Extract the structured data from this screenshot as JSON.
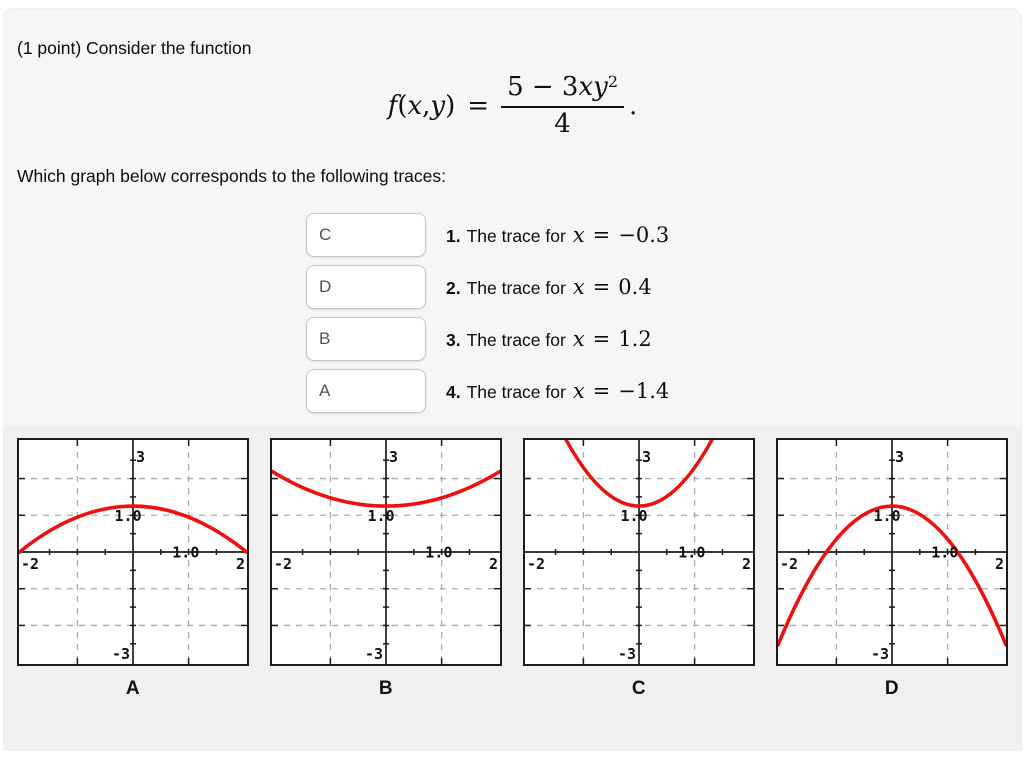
{
  "page": {
    "intro": "(1 point) Consider the function",
    "question": "Which graph below corresponds to the following traces:"
  },
  "formula": {
    "f": "f",
    "open": "(",
    "x": "x",
    "comma": ", ",
    "y": "y",
    "close": ")",
    "equals": "=",
    "num_lead": "5 − 3",
    "num_vars": "xy",
    "num_sup": "2",
    "denominator": "4",
    "period": "."
  },
  "matching": {
    "rows": [
      {
        "input_value": "C",
        "number": "1.",
        "text": "The trace for",
        "var": "x",
        "eq": "=",
        "value": "−0.3"
      },
      {
        "input_value": "D",
        "number": "2.",
        "text": "The trace for",
        "var": "x",
        "eq": "=",
        "value": "0.4"
      },
      {
        "input_value": "B",
        "number": "3.",
        "text": "The trace for",
        "var": "x",
        "eq": "=",
        "value": "1.2"
      },
      {
        "input_value": "A",
        "number": "4.",
        "text": "The trace for",
        "var": "x",
        "eq": "=",
        "value": "−1.4"
      }
    ]
  },
  "figure": {
    "curve_color": "#ee0f0f",
    "graphs": [
      {
        "caption": "A",
        "axis": {
          "top": "3",
          "bottom": "-3",
          "left": "-2",
          "right": "2",
          "x_tick": "1.0",
          "y_tick": "1.0"
        },
        "curve": {
          "vertex_y": 1.25,
          "coeff": -0.3
        }
      },
      {
        "caption": "B",
        "axis": {
          "top": "3",
          "bottom": "-3",
          "left": "-2",
          "right": "2",
          "x_tick": "1.0",
          "y_tick": "1.0"
        },
        "curve": {
          "vertex_y": 1.25,
          "coeff": 0.225
        }
      },
      {
        "caption": "C",
        "axis": {
          "top": "3",
          "bottom": "-3",
          "left": "-2",
          "right": "2",
          "x_tick": "1.0",
          "y_tick": "1.0"
        },
        "curve": {
          "vertex_y": 1.25,
          "coeff": 1.05
        }
      },
      {
        "caption": "D",
        "axis": {
          "top": "3",
          "bottom": "-3",
          "left": "-2",
          "right": "2",
          "x_tick": "1.0",
          "y_tick": "1.0"
        },
        "curve": {
          "vertex_y": 1.25,
          "coeff": -0.9
        }
      }
    ]
  },
  "chart_data": [
    {
      "type": "line",
      "label": "A",
      "x_range": [
        -2,
        2
      ],
      "y_range": [
        -3,
        3
      ],
      "curve": "z = 1.25 − 0.3·y²",
      "points": [
        [
          -2,
          0.05
        ],
        [
          0,
          1.25
        ],
        [
          2,
          0.05
        ]
      ]
    },
    {
      "type": "line",
      "label": "B",
      "x_range": [
        -2,
        2
      ],
      "y_range": [
        -3,
        3
      ],
      "curve": "z = 1.25 + 0.225·y²",
      "points": [
        [
          -2,
          2.15
        ],
        [
          0,
          1.25
        ],
        [
          2,
          2.15
        ]
      ]
    },
    {
      "type": "line",
      "label": "C",
      "x_range": [
        -2,
        2
      ],
      "y_range": [
        -3,
        3
      ],
      "curve": "z = 1.25 + 1.05·y²",
      "points": [
        [
          -1.29,
          3
        ],
        [
          0,
          1.25
        ],
        [
          1.29,
          3
        ]
      ]
    },
    {
      "type": "line",
      "label": "D",
      "x_range": [
        -2,
        2
      ],
      "y_range": [
        -3,
        3
      ],
      "curve": "z = 1.25 − 0.9·y²",
      "points": [
        [
          -2,
          -2.35
        ],
        [
          0,
          1.25
        ],
        [
          2,
          -2.35
        ]
      ]
    }
  ]
}
